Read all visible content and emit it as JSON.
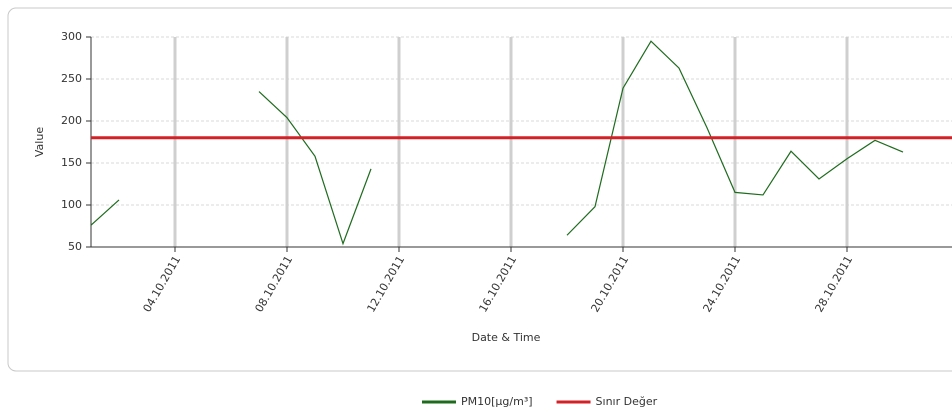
{
  "chart_data": {
    "type": "line",
    "x_label": "Date & Time",
    "y_label": "Value",
    "x": [
      "2011-10-01",
      "2011-10-02",
      "2011-10-03",
      "2011-10-04",
      "2011-10-05",
      "2011-10-06",
      "2011-10-07",
      "2011-10-08",
      "2011-10-09",
      "2011-10-10",
      "2011-10-11",
      "2011-10-12",
      "2011-10-13",
      "2011-10-14",
      "2011-10-15",
      "2011-10-16",
      "2011-10-17",
      "2011-10-18",
      "2011-10-19",
      "2011-10-20",
      "2011-10-21",
      "2011-10-22",
      "2011-10-23",
      "2011-10-24",
      "2011-10-25",
      "2011-10-26",
      "2011-10-27",
      "2011-10-28",
      "2011-10-29",
      "2011-10-30"
    ],
    "series": [
      {
        "name": "PM10[µg/m³]",
        "color": "#1e6b1e",
        "values": [
          76,
          106,
          null,
          null,
          null,
          null,
          235,
          204,
          158,
          54,
          143,
          null,
          null,
          null,
          null,
          null,
          null,
          64,
          98,
          239,
          295,
          263,
          192,
          115,
          112,
          164,
          131,
          155,
          177,
          163
        ]
      }
    ],
    "lines": [
      {
        "name": "Sınır Değer",
        "color": "#d42027",
        "value": 180
      }
    ],
    "xlim": [
      "2011-10-01",
      "2011-11-01"
    ],
    "xticks": [
      {
        "value": "2011-10-04",
        "label": "04.10.2011"
      },
      {
        "value": "2011-10-08",
        "label": "08.10.2011"
      },
      {
        "value": "2011-10-12",
        "label": "12.10.2011"
      },
      {
        "value": "2011-10-16",
        "label": "16.10.2011"
      },
      {
        "value": "2011-10-20",
        "label": "20.10.2011"
      },
      {
        "value": "2011-10-24",
        "label": "24.10.2011"
      },
      {
        "value": "2011-10-28",
        "label": "28.10.2011"
      }
    ],
    "ylim": [
      50,
      300
    ],
    "yticks": [
      50,
      100,
      150,
      200,
      250,
      300
    ],
    "grid": true,
    "legend": "bottom"
  }
}
